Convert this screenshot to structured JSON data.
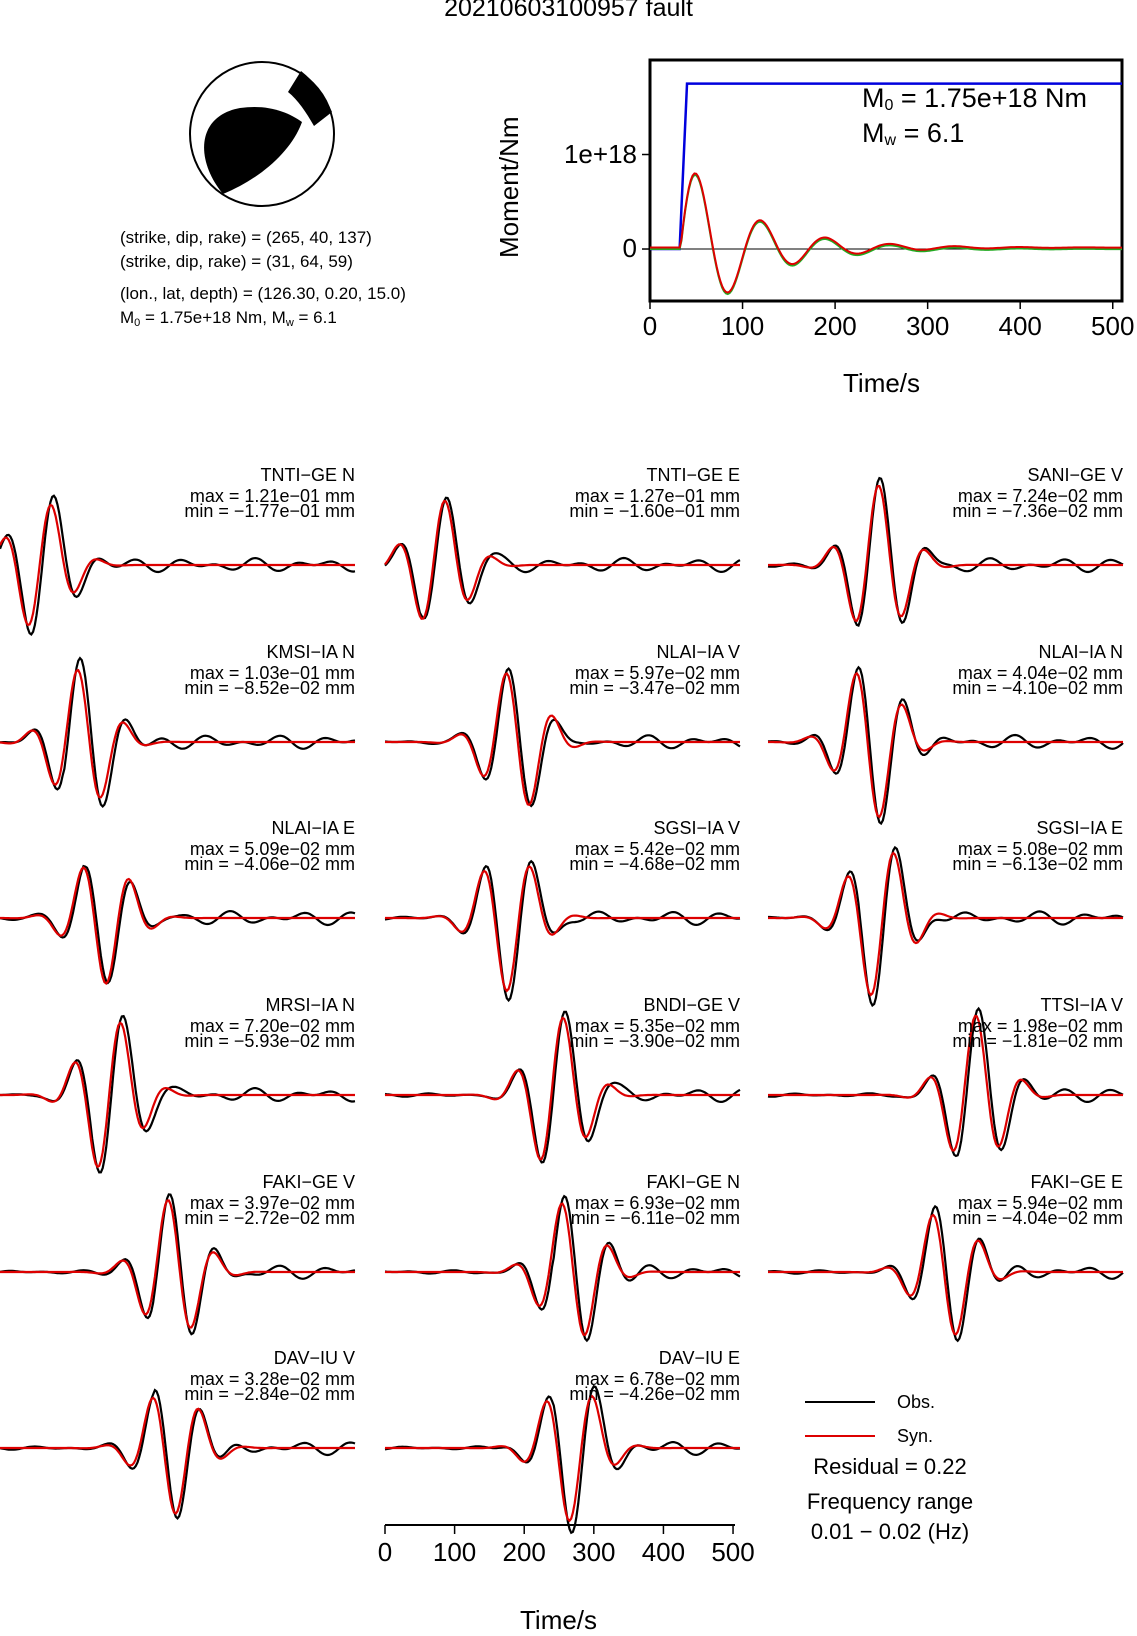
{
  "title": "20210603100957 fault",
  "mechanism": {
    "plane1": "(strike, dip, rake) = (265, 40, 137)",
    "plane2": "(strike, dip, rake) = (31, 64, 59)",
    "location": "(lon., lat, depth) = (126.30, 0.20, 15.0)",
    "m0_prefix": "M",
    "m0_sub": "0",
    "m0_value": " = 1.75e+18 Nm, M",
    "mw_sub": "w",
    "mw_value": " = 6.1"
  },
  "moment_panel": {
    "m0_label": "M",
    "m0_sub": "0",
    "m0_text": " = 1.75e+18 Nm",
    "mw_label": "M",
    "mw_sub": "w",
    "mw_text": " = 6.1",
    "ylabel": "Moment/Nm",
    "xlabel": "Time/s",
    "yticks": [
      "0",
      "1e+18"
    ],
    "xticks": [
      "0",
      "100",
      "200",
      "300",
      "400",
      "500"
    ]
  },
  "waveform_axis": {
    "xlabel": "Time/s",
    "xticks": [
      "0",
      "100",
      "200",
      "300",
      "400",
      "500"
    ]
  },
  "legend": {
    "obs": "Obs.",
    "syn": "Syn.",
    "obs_color": "#000000",
    "syn_color": "#dd0000"
  },
  "residual": "Residual = 0.22",
  "frequency": {
    "label": "Frequency range",
    "value": "0.01 − 0.02 (Hz)"
  },
  "colors": {
    "obs": "#000000",
    "syn": "#dd0000",
    "stf": "#0000dd",
    "syn2": "#22aa22"
  },
  "stations": [
    {
      "name": "TNTI−GE N",
      "max": "max = 1.21e−01 mm",
      "min": "min = −1.77e−01 mm"
    },
    {
      "name": "TNTI−GE E",
      "max": "max = 1.27e−01 mm",
      "min": "min = −1.60e−01 mm"
    },
    {
      "name": "SANI−GE V",
      "max": "max = 7.24e−02 mm",
      "min": "min = −7.36e−02 mm"
    },
    {
      "name": "KMSI−IA N",
      "max": "max = 1.03e−01 mm",
      "min": "min = −8.52e−02 mm"
    },
    {
      "name": "NLAI−IA V",
      "max": "max = 5.97e−02 mm",
      "min": "min = −3.47e−02 mm"
    },
    {
      "name": "NLAI−IA N",
      "max": "max = 4.04e−02 mm",
      "min": "min = −4.10e−02 mm"
    },
    {
      "name": "NLAI−IA E",
      "max": "max = 5.09e−02 mm",
      "min": "min = −4.06e−02 mm"
    },
    {
      "name": "SGSI−IA V",
      "max": "max = 5.42e−02 mm",
      "min": "min = −4.68e−02 mm"
    },
    {
      "name": "SGSI−IA E",
      "max": "max = 5.08e−02 mm",
      "min": "min = −6.13e−02 mm"
    },
    {
      "name": "MRSI−IA N",
      "max": "max = 7.20e−02 mm",
      "min": "min = −5.93e−02 mm"
    },
    {
      "name": "BNDI−GE V",
      "max": "max = 5.35e−02 mm",
      "min": "min = −3.90e−02 mm"
    },
    {
      "name": "TTSI−IA V",
      "max": "max = 1.98e−02 mm",
      "min": "min = −1.81e−02 mm"
    },
    {
      "name": "FAKI−GE V",
      "max": "max = 3.97e−02 mm",
      "min": "min = −2.72e−02 mm"
    },
    {
      "name": "FAKI−GE N",
      "max": "max = 6.93e−02 mm",
      "min": "min = −6.11e−02 mm"
    },
    {
      "name": "FAKI−GE E",
      "max": "max = 5.94e−02 mm",
      "min": "min = −4.04e−02 mm"
    },
    {
      "name": "DAV−IU V",
      "max": "max = 3.28e−02 mm",
      "min": "min = −2.84e−02 mm"
    },
    {
      "name": "DAV−IU E",
      "max": "max = 6.78e−02 mm",
      "min": "min = −4.26e−02 mm"
    }
  ],
  "chart_data": [
    {
      "type": "line",
      "title": "",
      "xlabel": "Time/s",
      "ylabel": "Moment/Nm",
      "xlim": [
        0,
        510
      ],
      "ylim": [
        -5.5e+17,
        2e+18
      ],
      "series": [
        {
          "name": "",
          "x": [
            0,
            32,
            40,
            510
          ],
          "y": [
            0,
            0,
            1.75e+18,
            1.75e+18
          ]
        }
      ]
    },
    {
      "type": "line",
      "title": "",
      "xlabel": "Time/s",
      "ylabel": "",
      "xlim": [
        0,
        510
      ],
      "series": [
        {
          "name": "Obs.",
          "values": []
        },
        {
          "name": "Syn.",
          "values": []
        }
      ]
    }
  ]
}
